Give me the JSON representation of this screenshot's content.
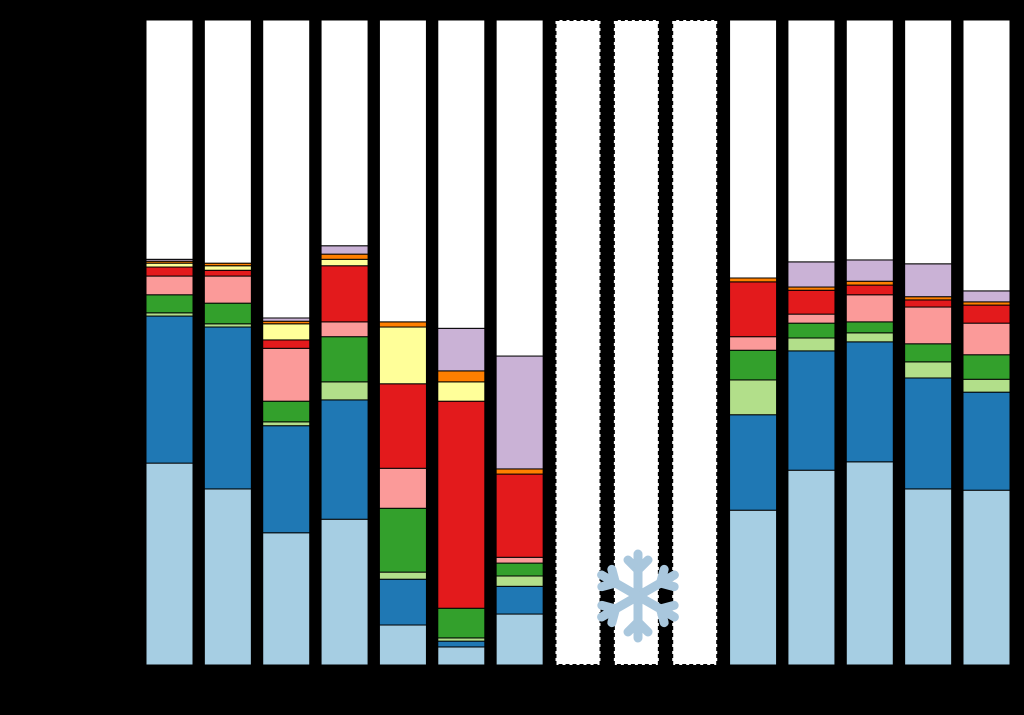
{
  "chart_data": {
    "type": "stacked-bar",
    "categories": [
      null,
      null,
      null,
      null,
      null,
      null,
      null,
      null,
      null,
      null,
      null,
      null,
      null,
      null,
      null
    ],
    "ylim": [
      0,
      100
    ],
    "series": [
      {
        "color": "#a6cee3",
        "values": [
          31.3,
          27.3,
          20.5,
          22.6,
          6.2,
          2.8,
          7.9,
          null,
          null,
          null,
          24.0,
          30.2,
          31.5,
          27.3,
          27.1
        ]
      },
      {
        "color": "#1f78b4",
        "values": [
          22.8,
          25.1,
          16.6,
          18.5,
          7.1,
          0.9,
          4.3,
          null,
          null,
          null,
          14.8,
          18.5,
          18.6,
          17.2,
          15.2
        ]
      },
      {
        "color": "#b2df8a",
        "values": [
          0.5,
          0.5,
          0.6,
          2.8,
          1.1,
          0.5,
          1.6,
          null,
          null,
          null,
          5.4,
          2.0,
          1.4,
          2.5,
          2.0
        ]
      },
      {
        "color": "#33a02c",
        "values": [
          2.8,
          3.2,
          3.2,
          7.0,
          9.9,
          4.6,
          2.0,
          null,
          null,
          null,
          4.6,
          2.3,
          1.7,
          2.8,
          3.8
        ]
      },
      {
        "color": "#fb9a99",
        "values": [
          2.9,
          4.2,
          8.2,
          2.3,
          6.2,
          0,
          0.9,
          null,
          null,
          null,
          2.1,
          1.4,
          4.2,
          5.7,
          4.9
        ]
      },
      {
        "color": "#e31a1c",
        "values": [
          1.4,
          0.9,
          1.3,
          8.7,
          13.1,
          32.1,
          12.9,
          null,
          null,
          null,
          8.5,
          3.7,
          1.5,
          1.1,
          2.8
        ]
      },
      {
        "color": "#ffff99",
        "values": [
          0.6,
          0.7,
          2.5,
          1.0,
          8.8,
          3.0,
          0,
          null,
          null,
          null,
          0,
          0,
          0,
          0,
          0
        ]
      },
      {
        "color": "#ff7f00",
        "values": [
          0.3,
          0.4,
          0.4,
          0.8,
          0.8,
          1.7,
          0.8,
          null,
          null,
          null,
          0.6,
          0.5,
          0.6,
          0.5,
          0.5
        ]
      },
      {
        "color": "#cab2d6",
        "values": [
          0.3,
          0,
          0.5,
          1.3,
          0,
          6.6,
          17.5,
          null,
          null,
          null,
          0,
          3.9,
          3.3,
          5.1,
          1.7
        ]
      },
      {
        "color": "#ffffff",
        "values": [
          37.1,
          37.7,
          46.2,
          35.0,
          46.8,
          47.8,
          52.1,
          null,
          null,
          null,
          40.0,
          37.5,
          37.2,
          37.8,
          42.0
        ]
      }
    ]
  }
}
